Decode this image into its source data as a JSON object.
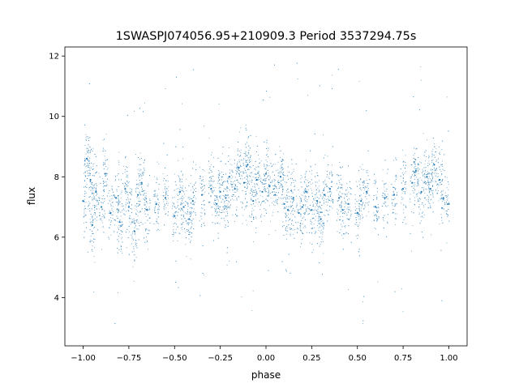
{
  "chart_data": {
    "type": "scatter",
    "title": "1SWASPJ074056.95+210909.3 Period 3537294.75s",
    "xlabel": "phase",
    "ylabel": "flux",
    "xlim": [
      -1.1,
      1.1
    ],
    "ylim": [
      2.4,
      12.3
    ],
    "xticks": [
      -1.0,
      -0.75,
      -0.5,
      -0.25,
      0.0,
      0.25,
      0.5,
      0.75,
      1.0
    ],
    "xtick_labels": [
      "−1.00",
      "−0.75",
      "−0.50",
      "−0.25",
      "0.00",
      "0.25",
      "0.50",
      "0.75",
      "1.00"
    ],
    "yticks": [
      4,
      6,
      8,
      10,
      12
    ],
    "ytick_labels": [
      "4",
      "6",
      "8",
      "10",
      "12"
    ],
    "grid": false,
    "legend": "none",
    "marker_color": "#1f77b4",
    "series": [
      {
        "description_points": "Dense vertical bands of points across phase -1 to 1; core flux roughly 6-8.5, sparse outliers down to ~2.9 and up to ~11.8",
        "x": [
          -1.0,
          -0.98,
          -0.96,
          -0.95,
          -0.93,
          -0.9,
          -0.88,
          -0.85,
          -0.82,
          -0.8,
          -0.77,
          -0.75,
          -0.72,
          -0.7,
          -0.68,
          -0.65,
          -0.6,
          -0.55,
          -0.5,
          -0.47,
          -0.45,
          -0.42,
          -0.4,
          -0.35,
          -0.3,
          -0.27,
          -0.25,
          -0.22,
          -0.2,
          -0.17,
          -0.15,
          -0.12,
          -0.1,
          -0.07,
          -0.05,
          -0.02,
          0.0,
          0.02,
          0.05,
          0.08,
          0.1,
          0.12,
          0.15,
          0.18,
          0.2,
          0.22,
          0.25,
          0.28,
          0.3,
          0.32,
          0.35,
          0.4,
          0.42,
          0.45,
          0.5,
          0.52,
          0.55,
          0.6,
          0.65,
          0.7,
          0.75,
          0.8,
          0.82,
          0.85,
          0.88,
          0.9,
          0.92,
          0.95,
          0.97,
          1.0
        ],
        "y": [
          7.2,
          8.6,
          7.9,
          6.4,
          7.5,
          7.0,
          8.1,
          6.8,
          7.3,
          6.5,
          7.6,
          7.0,
          6.2,
          7.4,
          7.8,
          6.9,
          7.1,
          7.3,
          6.7,
          7.5,
          7.0,
          6.6,
          7.2,
          7.4,
          7.6,
          7.1,
          7.5,
          7.3,
          8.0,
          7.6,
          8.3,
          7.8,
          8.4,
          7.2,
          7.9,
          7.5,
          8.1,
          7.7,
          7.4,
          8.0,
          7.1,
          6.9,
          7.3,
          6.8,
          7.0,
          7.5,
          6.9,
          7.2,
          6.6,
          7.4,
          7.6,
          7.3,
          6.9,
          7.1,
          6.8,
          7.2,
          7.5,
          7.0,
          7.3,
          7.4,
          7.6,
          7.8,
          8.2,
          7.5,
          8.0,
          7.6,
          8.4,
          7.9,
          7.3,
          7.1
        ]
      }
    ]
  }
}
